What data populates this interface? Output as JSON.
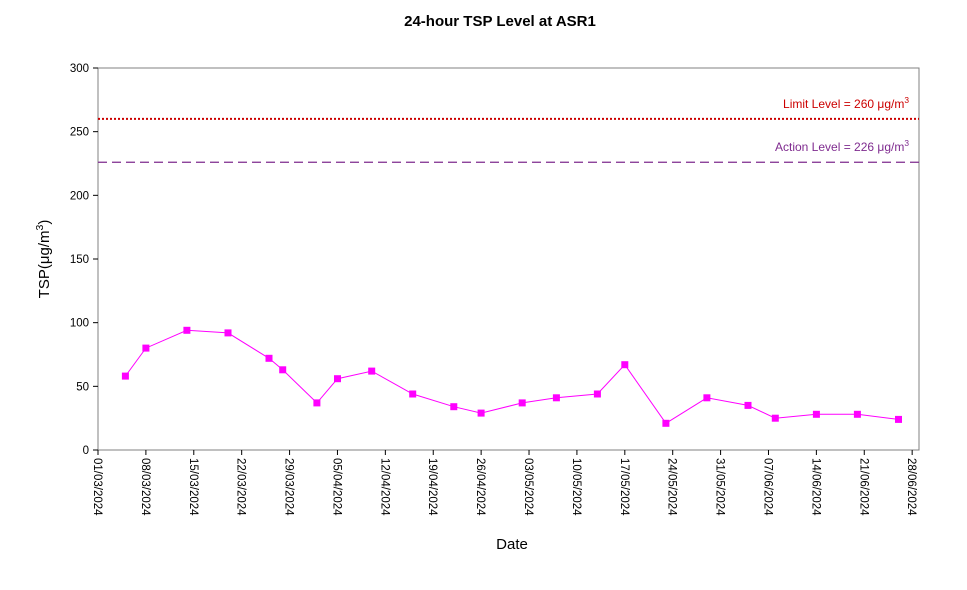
{
  "chart_data": {
    "type": "line",
    "title": "24-hour TSP Level at ASR1",
    "xlabel": "Date",
    "ylabel": "TSP(μg/m3)",
    "ylim": [
      0,
      300
    ],
    "yticks": [
      0,
      50,
      100,
      150,
      200,
      250,
      300
    ],
    "xlim": [
      "2024-03-01",
      "2024-06-29"
    ],
    "xticks": [
      "01/03/2024",
      "08/03/2024",
      "15/03/2024",
      "22/03/2024",
      "29/03/2024",
      "05/04/2024",
      "12/04/2024",
      "19/04/2024",
      "26/04/2024",
      "03/05/2024",
      "10/05/2024",
      "17/05/2024",
      "24/05/2024",
      "31/05/2024",
      "07/06/2024",
      "14/06/2024",
      "21/06/2024",
      "28/06/2024"
    ],
    "series": [
      {
        "color": "#ff00ff",
        "marker": "square",
        "points": [
          {
            "x": "2024-03-05",
            "y": 58
          },
          {
            "x": "2024-03-08",
            "y": 80
          },
          {
            "x": "2024-03-14",
            "y": 94
          },
          {
            "x": "2024-03-20",
            "y": 92
          },
          {
            "x": "2024-03-26",
            "y": 72
          },
          {
            "x": "2024-03-28",
            "y": 63
          },
          {
            "x": "2024-04-02",
            "y": 37
          },
          {
            "x": "2024-04-05",
            "y": 56
          },
          {
            "x": "2024-04-10",
            "y": 62
          },
          {
            "x": "2024-04-16",
            "y": 44
          },
          {
            "x": "2024-04-22",
            "y": 34
          },
          {
            "x": "2024-04-26",
            "y": 29
          },
          {
            "x": "2024-05-02",
            "y": 37
          },
          {
            "x": "2024-05-07",
            "y": 41
          },
          {
            "x": "2024-05-13",
            "y": 44
          },
          {
            "x": "2024-05-17",
            "y": 67
          },
          {
            "x": "2024-05-23",
            "y": 21
          },
          {
            "x": "2024-05-29",
            "y": 41
          },
          {
            "x": "2024-06-04",
            "y": 35
          },
          {
            "x": "2024-06-08",
            "y": 25
          },
          {
            "x": "2024-06-14",
            "y": 28
          },
          {
            "x": "2024-06-20",
            "y": 28
          },
          {
            "x": "2024-06-26",
            "y": 24
          }
        ]
      }
    ],
    "reference_lines": [
      {
        "label": "Limit Level  = 260 μg/m3",
        "value": 260,
        "color": "#cc0000",
        "style": "dotted"
      },
      {
        "label": "Action Level  = 226 μg/m3",
        "value": 226,
        "color": "#7f2b8f",
        "style": "dashed"
      }
    ],
    "grid": false,
    "legend": "none"
  }
}
